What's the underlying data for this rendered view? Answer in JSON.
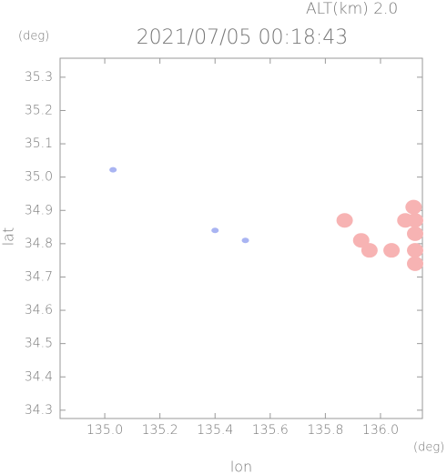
{
  "chart_data": {
    "type": "scatter",
    "title": "2021/07/05 00:18:43",
    "subtitle": "ALT(km) 2.0",
    "y_unit": "(deg)",
    "x_unit": "(deg)",
    "x_label": "lon",
    "y_label": "lat",
    "xlim": [
      134.838,
      136.152
    ],
    "ylim": [
      34.275,
      35.357
    ],
    "xticks": [
      {
        "value": 135,
        "label": "135.0"
      },
      135.2,
      135.4,
      135.6,
      135.8,
      {
        "value": 136,
        "label": "136.0"
      }
    ],
    "yticks": [
      34.3,
      34.4,
      34.5,
      34.6,
      34.7,
      34.8,
      34.9,
      {
        "value": 35,
        "label": "35.0"
      },
      35.1,
      35.2,
      35.3
    ],
    "series": [
      {
        "color": "#a9b4f2",
        "x": [
          135.03,
          135.4,
          135.51
        ],
        "values": [
          35.022,
          34.84,
          34.81
        ]
      },
      {
        "color": "#f7b3b3",
        "x": [
          135.87,
          135.93,
          135.96,
          136.04,
          136.12,
          136.14,
          136.13,
          136.14,
          136.13,
          136.09
        ],
        "values": [
          34.87,
          34.81,
          34.78,
          34.78,
          34.91,
          34.87,
          34.83,
          34.78,
          34.74,
          34.87
        ]
      }
    ]
  }
}
